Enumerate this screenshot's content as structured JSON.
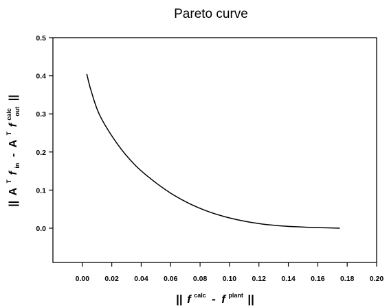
{
  "chart_data": {
    "type": "line",
    "title": "Pareto curve",
    "xlabel": "|| fcalc - fplant ||",
    "ylabel": "|| ATfin - ATfcalcout ||",
    "xlim": [
      -0.02,
      0.2
    ],
    "ylim": [
      -0.09,
      0.5
    ],
    "x_ticks": [
      "0.00",
      "0.02",
      "0.04",
      "0.06",
      "0.08",
      "0.10",
      "0.12",
      "0.14",
      "0.16",
      "0.18",
      "0.20"
    ],
    "y_ticks": [
      "0.0",
      "0.1",
      "0.2",
      "0.3",
      "0.4",
      "0.5"
    ],
    "grid": false,
    "legend": "none",
    "series": [
      {
        "x": [
          0.003,
          0.006,
          0.012,
          0.024,
          0.036,
          0.048,
          0.06,
          0.072,
          0.084,
          0.096,
          0.108,
          0.12,
          0.132,
          0.144,
          0.156,
          0.165,
          0.175
        ],
        "y": [
          0.405,
          0.36,
          0.295,
          0.22,
          0.165,
          0.125,
          0.092,
          0.066,
          0.046,
          0.031,
          0.02,
          0.012,
          0.007,
          0.004,
          0.002,
          0.001,
          0.0
        ]
      }
    ]
  },
  "axis_text": {
    "x": {
      "bar_left": "||",
      "f1": "f",
      "sup1": "calc",
      "minus": "-",
      "f2": "f",
      "sup2": "plant",
      "bar_right": "||"
    },
    "y": {
      "bar_left": "||",
      "A1": "A",
      "T1": "T",
      "f1": "f",
      "sub1": "in",
      "minus": "-",
      "A2": "A",
      "T2": "T",
      "f2": "f",
      "sup2": "calc",
      "sub2": "out",
      "bar_right": "||"
    }
  }
}
